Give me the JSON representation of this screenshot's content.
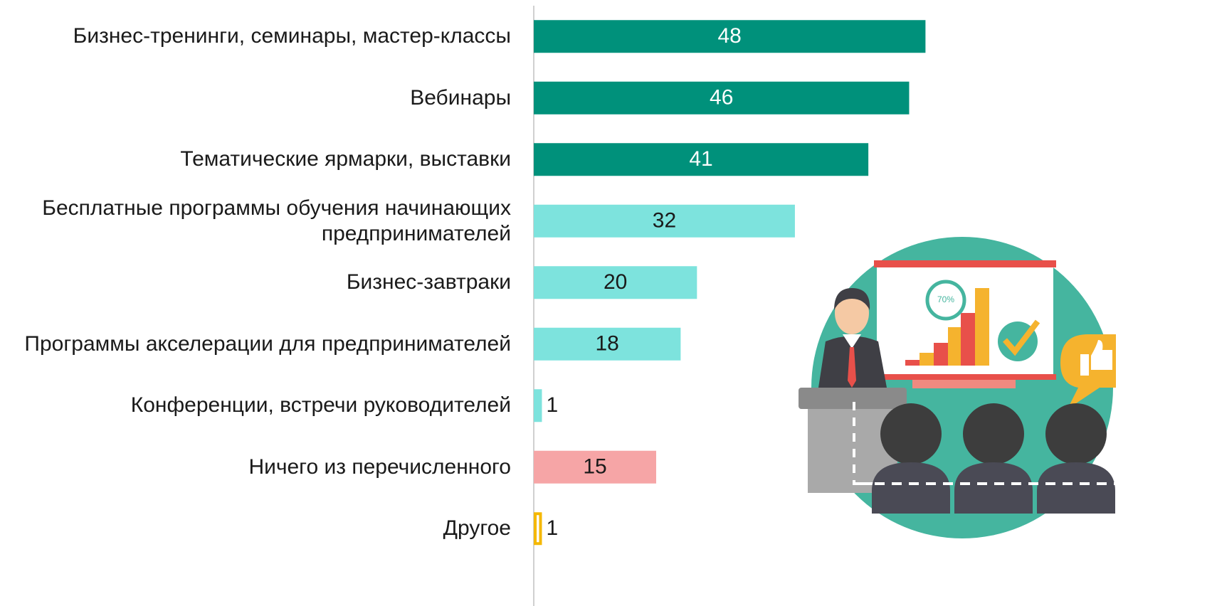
{
  "chart_data": {
    "type": "bar",
    "orientation": "horizontal",
    "categories": [
      "Бизнес-тренинги, семинары, мастер-классы",
      "Вебинары",
      "Тематические ярмарки, выставки",
      "Бесплатные программы обучения начинающих предпринимателей",
      "Бизнес-завтраки",
      "Программы акселерации для предпринимателей",
      "Конференции, встречи руководителей",
      "Ничего из перечисленного",
      "Другое"
    ],
    "values": [
      48,
      46,
      41,
      32,
      20,
      18,
      1,
      15,
      1
    ],
    "colors": [
      "#00917b",
      "#00917b",
      "#00917b",
      "#7de3dd",
      "#7de3dd",
      "#7de3dd",
      "#7de3dd",
      "#f6a5a6",
      "#ffffff"
    ],
    "xlim": [
      0,
      60
    ]
  },
  "illustration": {
    "badge": "70%"
  }
}
